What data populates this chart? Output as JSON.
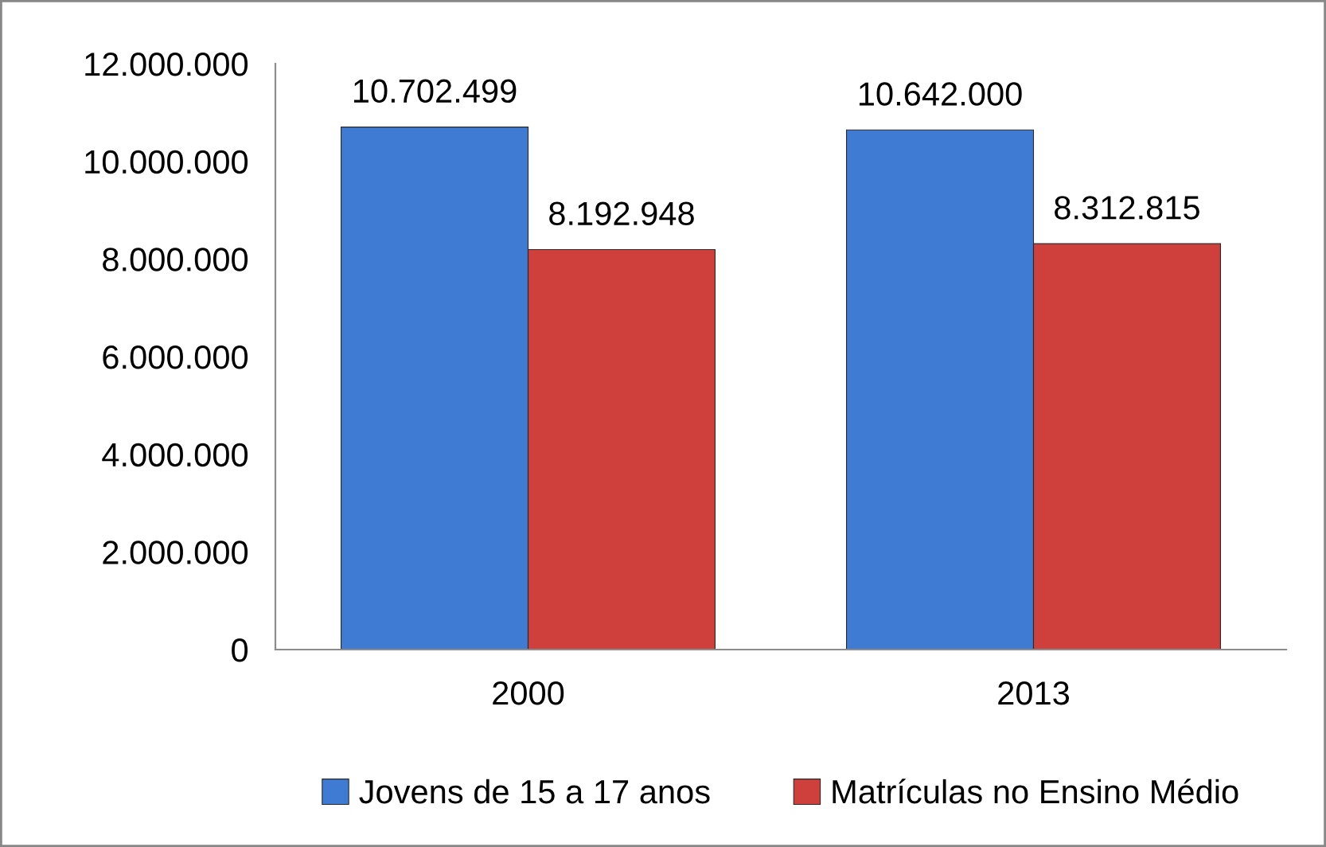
{
  "chart_data": {
    "type": "bar",
    "categories": [
      "2000",
      "2013"
    ],
    "series": [
      {
        "name": "Jovens de 15 a 17 anos",
        "color": "#3f7bd2",
        "values": [
          10702499,
          10642000
        ],
        "value_labels": [
          "10.702.499",
          "10.642.000"
        ]
      },
      {
        "name": "Matrículas no Ensino Médio",
        "color": "#cf3f3b",
        "values": [
          8192948,
          8312815
        ],
        "value_labels": [
          "8.192.948",
          "8.312.815"
        ]
      }
    ],
    "ylim": [
      0,
      12000000
    ],
    "yticks": [
      {
        "value": 0,
        "label": "0"
      },
      {
        "value": 2000000,
        "label": "2.000.000"
      },
      {
        "value": 4000000,
        "label": "4.000.000"
      },
      {
        "value": 6000000,
        "label": "6.000.000"
      },
      {
        "value": 8000000,
        "label": "8.000.000"
      },
      {
        "value": 10000000,
        "label": "10.000.000"
      },
      {
        "value": 12000000,
        "label": "12.000.000"
      }
    ],
    "legend": "bottom"
  }
}
